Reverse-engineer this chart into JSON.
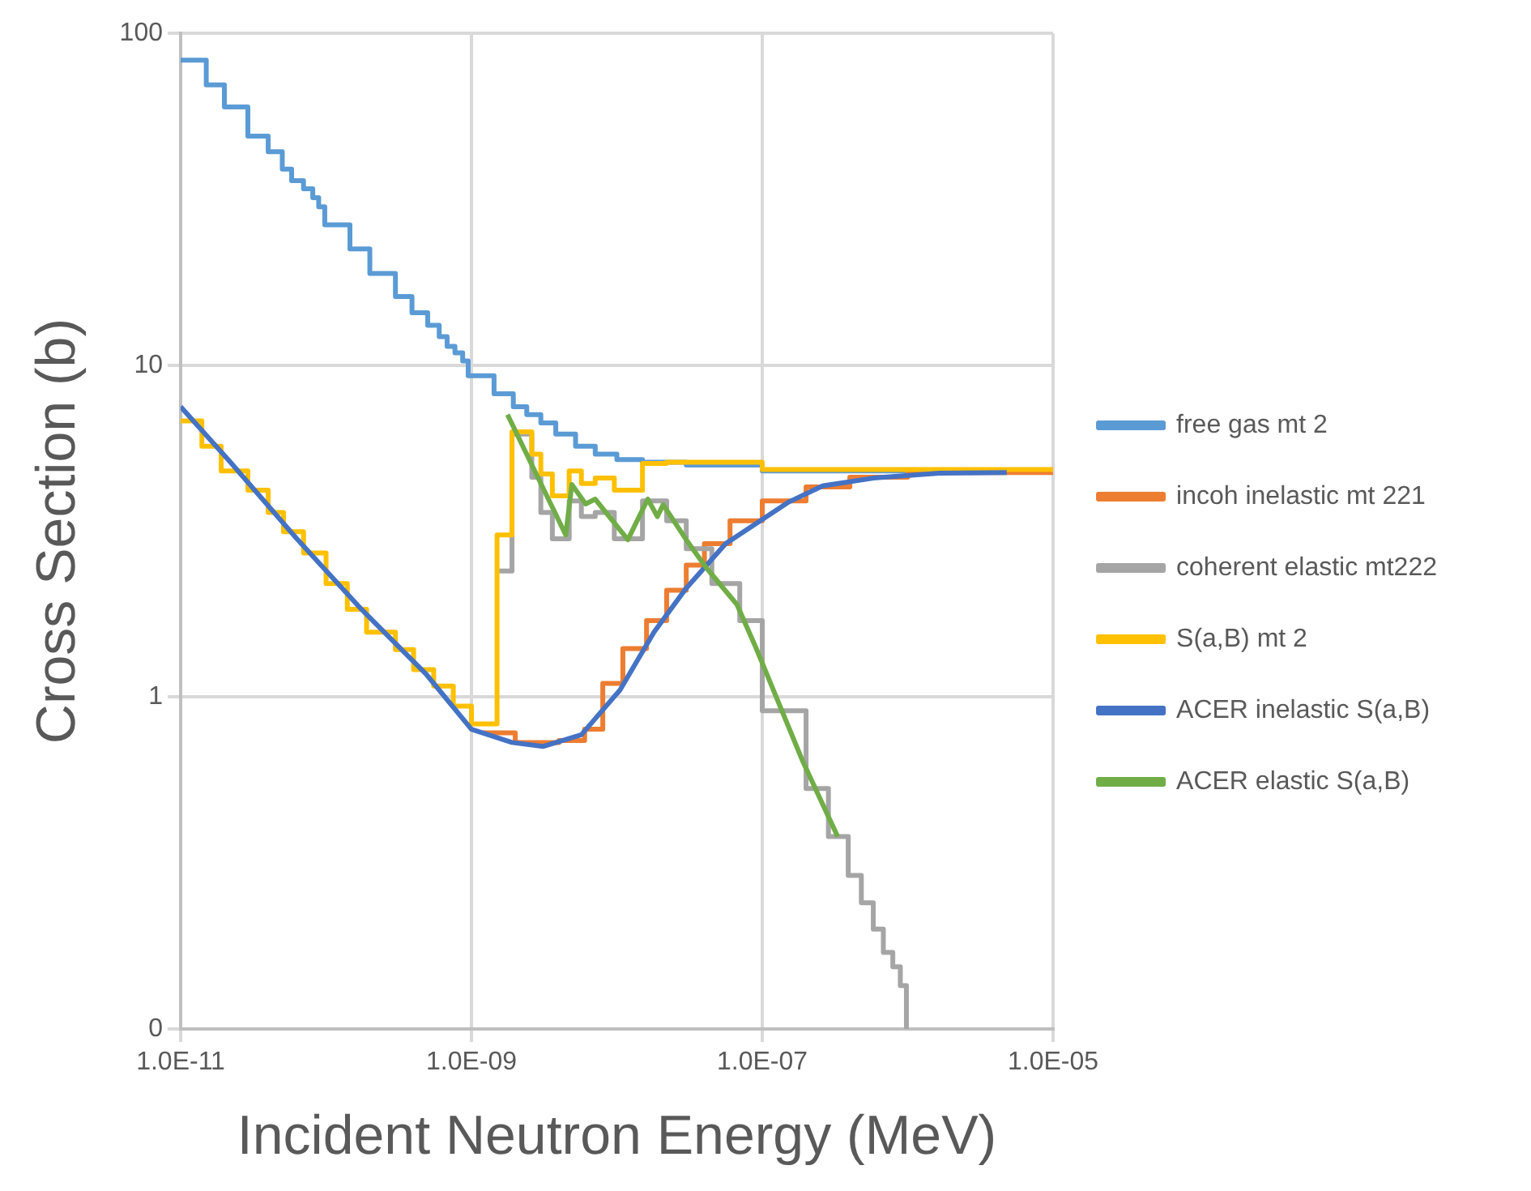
{
  "chart_data": {
    "type": "line",
    "xlabel": "Incident Neutron Energy (MeV)",
    "ylabel": "Cross Section (b)",
    "log": "xy",
    "grid": true,
    "legend": "right",
    "xlim": [
      1e-11,
      1e-05
    ],
    "ylim": [
      0.1,
      100
    ],
    "xticks": [
      {
        "value": 1e-11,
        "label": "1.0E-11"
      },
      {
        "value": 1e-09,
        "label": "1.0E-09"
      },
      {
        "value": 1e-07,
        "label": "1.0E-07"
      },
      {
        "value": 1e-05,
        "label": "1.0E-05"
      }
    ],
    "yticks": [
      {
        "value": 0.1,
        "label": "0"
      },
      1,
      10,
      100
    ],
    "series": [
      {
        "name": "free gas mt 2",
        "type": "step",
        "color": "#5b9bd5",
        "x": [
          1e-11,
          1.5e-11,
          2e-11,
          2.9e-11,
          4e-11,
          5e-11,
          5.8e-11,
          7e-11,
          8.1e-11,
          8.9e-11,
          9.8e-11,
          1.46e-10,
          2e-10,
          3e-10,
          3.9e-10,
          5e-10,
          6e-10,
          6.8e-10,
          7.7e-10,
          8.7e-10,
          9.5e-10,
          1.43e-09,
          1.94e-09,
          2.4e-09,
          3e-09,
          3.8e-09,
          5.2e-09,
          7.1e-09,
          1e-08,
          1.5e-08,
          3e-08,
          1e-07,
          3e-06
        ],
        "values": [
          83,
          70,
          60,
          49,
          44,
          39,
          36,
          34,
          32,
          30,
          26.5,
          22.4,
          18.9,
          16.1,
          14.4,
          13.2,
          12.2,
          11.4,
          10.9,
          10.3,
          9.3,
          8.2,
          7.5,
          7.1,
          6.7,
          6.2,
          5.7,
          5.4,
          5.2,
          5.1,
          5.0,
          4.8,
          4.8
        ]
      },
      {
        "name": "incoh inelastic mt 221",
        "type": "step",
        "color": "#ed7d31",
        "x": [
          1.2e-09,
          2e-09,
          4e-09,
          6e-09,
          8e-09,
          1.1e-08,
          1.6e-08,
          2.2e-08,
          3e-08,
          4e-08,
          6e-08,
          1e-07,
          2e-07,
          4e-07,
          1e-06,
          1e-05
        ],
        "values": [
          0.78,
          0.73,
          0.74,
          0.8,
          1.1,
          1.4,
          1.7,
          2.1,
          2.5,
          2.9,
          3.4,
          3.9,
          4.3,
          4.6,
          4.75,
          4.75
        ]
      },
      {
        "name": "coherent elastic mt222",
        "type": "step",
        "color": "#a5a5a5",
        "x": [
          1.5e-09,
          1.9e-09,
          2.6e-09,
          3e-09,
          3.6e-09,
          4.7e-09,
          5.7e-09,
          7.1e-09,
          9.6e-09,
          1.5e-08,
          2.2e-08,
          3e-08,
          4.5e-08,
          7e-08,
          1e-07,
          2e-07,
          2.85e-07,
          3.9e-07,
          4.8e-07,
          5.8e-07,
          6.8e-07,
          7.9e-07,
          8.9e-07,
          9.8e-07
        ],
        "values": [
          2.4,
          6.2,
          4.6,
          3.6,
          3.0,
          3.9,
          3.5,
          3.6,
          3.0,
          3.9,
          3.4,
          2.8,
          2.2,
          1.7,
          0.91,
          0.53,
          0.38,
          0.29,
          0.24,
          0.2,
          0.17,
          0.154,
          0.135,
          0.1
        ]
      },
      {
        "name": "S(a,B) mt 2",
        "type": "step",
        "color": "#ffc000",
        "x": [
          1e-11,
          1.4e-11,
          1.9e-11,
          2.9e-11,
          4e-11,
          5.1e-11,
          7e-11,
          1e-10,
          1.4e-10,
          1.9e-10,
          3e-10,
          4e-10,
          5.5e-10,
          7.5e-10,
          1e-09,
          1.5e-09,
          1.9e-09,
          2.6e-09,
          3e-09,
          3.6e-09,
          4.7e-09,
          5.7e-09,
          7.1e-09,
          9.6e-09,
          1.5e-08,
          2.2e-08,
          1e-07,
          1e-05
        ],
        "values": [
          6.8,
          5.7,
          4.8,
          4.2,
          3.6,
          3.15,
          2.72,
          2.2,
          1.84,
          1.57,
          1.39,
          1.21,
          1.08,
          0.94,
          0.83,
          3.08,
          6.3,
          5.4,
          4.7,
          4.04,
          4.8,
          4.4,
          4.57,
          4.2,
          5.06,
          5.1,
          4.85,
          4.8
        ]
      },
      {
        "name": "ACER inelastic S(a,B)",
        "type": "line",
        "color": "#4472c4",
        "x": [
          1e-11,
          2.2e-11,
          6.3e-11,
          1.75e-10,
          4.9e-10,
          1e-09,
          1.9e-09,
          3.1e-09,
          5.7e-09,
          1.05e-08,
          1.8e-08,
          3e-08,
          5.6e-08,
          1.5e-07,
          2.6e-07,
          5.8e-07,
          1.65e-06,
          4.8e-06
        ],
        "values": [
          7.5,
          5.1,
          3.0,
          1.84,
          1.17,
          0.8,
          0.73,
          0.71,
          0.77,
          1.05,
          1.57,
          2.13,
          2.9,
          3.86,
          4.33,
          4.57,
          4.73,
          4.75
        ]
      },
      {
        "name": "ACER elastic S(a,B)",
        "type": "line",
        "color": "#70ad47",
        "x": [
          1.77e-09,
          4.45e-09,
          4.9e-09,
          6.1e-09,
          7.1e-09,
          1.19e-08,
          1.63e-08,
          1.9e-08,
          2.08e-08,
          3e-08,
          4.1e-08,
          6.7e-08,
          9.1e-08,
          1.9e-07,
          3.3e-07
        ],
        "values": [
          7.1,
          3.08,
          4.37,
          3.82,
          3.95,
          2.98,
          3.95,
          3.5,
          3.8,
          2.98,
          2.46,
          1.9,
          1.4,
          0.64,
          0.38
        ]
      }
    ]
  }
}
